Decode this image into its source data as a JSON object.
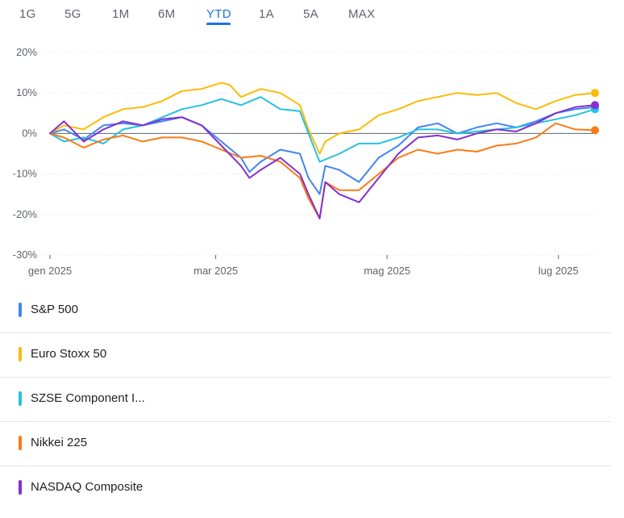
{
  "tabs": [
    {
      "label": "1G"
    },
    {
      "label": "5G"
    },
    {
      "label": "1M"
    },
    {
      "label": "6M"
    },
    {
      "label": "YTD",
      "active": true
    },
    {
      "label": "1A"
    },
    {
      "label": "5A"
    },
    {
      "label": "MAX"
    }
  ],
  "colors": {
    "accent": "#1a73e8",
    "zero_line": "#5f6368",
    "grid": "#e0e0e0"
  },
  "legend": [
    {
      "label": "S&P 500",
      "color": "#4285f4"
    },
    {
      "label": "Euro Stoxx 50",
      "color": "#fbbc04"
    },
    {
      "label": "SZSE Component I...",
      "color": "#24c1e0"
    },
    {
      "label": "Nikkei 225",
      "color": "#fa7b17"
    },
    {
      "label": "NASDAQ Composite",
      "color": "#8430ce"
    }
  ],
  "chart_data": {
    "type": "line",
    "ylim": [
      -30,
      20
    ],
    "yticks": [
      20,
      10,
      0,
      -10,
      -20,
      -30
    ],
    "ytick_labels": [
      "20%",
      "10%",
      "0%",
      "-10%",
      "-20%",
      "-30%"
    ],
    "xlim": [
      "2025-01-01",
      "2025-07-14"
    ],
    "xticks": [
      "2025-01-01",
      "2025-03-01",
      "2025-05-01",
      "2025-07-01"
    ],
    "xtick_labels": [
      "gen 2025",
      "mar 2025",
      "mag 2025",
      "lug 2025"
    ],
    "series": [
      {
        "name": "S&P 500",
        "color": "#4285f4",
        "points": [
          [
            "2025-01-01",
            0
          ],
          [
            "2025-01-06",
            1
          ],
          [
            "2025-01-13",
            -1.5
          ],
          [
            "2025-01-20",
            2
          ],
          [
            "2025-01-27",
            2.5
          ],
          [
            "2025-02-03",
            2
          ],
          [
            "2025-02-10",
            3
          ],
          [
            "2025-02-17",
            4
          ],
          [
            "2025-02-24",
            2
          ],
          [
            "2025-03-03",
            -2
          ],
          [
            "2025-03-10",
            -6
          ],
          [
            "2025-03-13",
            -9.5
          ],
          [
            "2025-03-17",
            -7
          ],
          [
            "2025-03-24",
            -4
          ],
          [
            "2025-03-31",
            -5
          ],
          [
            "2025-04-03",
            -11
          ],
          [
            "2025-04-07",
            -15
          ],
          [
            "2025-04-09",
            -8
          ],
          [
            "2025-04-14",
            -9
          ],
          [
            "2025-04-21",
            -12
          ],
          [
            "2025-04-28",
            -6
          ],
          [
            "2025-05-05",
            -3
          ],
          [
            "2025-05-12",
            1.5
          ],
          [
            "2025-05-19",
            2.5
          ],
          [
            "2025-05-26",
            0
          ],
          [
            "2025-06-02",
            1.5
          ],
          [
            "2025-06-09",
            2.5
          ],
          [
            "2025-06-16",
            1.5
          ],
          [
            "2025-06-23",
            3
          ],
          [
            "2025-06-30",
            5
          ],
          [
            "2025-07-07",
            6
          ],
          [
            "2025-07-14",
            6.5
          ]
        ]
      },
      {
        "name": "Euro Stoxx 50",
        "color": "#fbbc04",
        "points": [
          [
            "2025-01-01",
            0
          ],
          [
            "2025-01-06",
            2
          ],
          [
            "2025-01-13",
            1
          ],
          [
            "2025-01-20",
            4
          ],
          [
            "2025-01-27",
            6
          ],
          [
            "2025-02-03",
            6.5
          ],
          [
            "2025-02-10",
            8
          ],
          [
            "2025-02-17",
            10.5
          ],
          [
            "2025-02-24",
            11
          ],
          [
            "2025-03-03",
            12.5
          ],
          [
            "2025-03-06",
            12
          ],
          [
            "2025-03-10",
            9
          ],
          [
            "2025-03-17",
            11
          ],
          [
            "2025-03-24",
            10
          ],
          [
            "2025-03-31",
            7
          ],
          [
            "2025-04-03",
            1
          ],
          [
            "2025-04-07",
            -5
          ],
          [
            "2025-04-09",
            -2
          ],
          [
            "2025-04-14",
            0
          ],
          [
            "2025-04-21",
            1
          ],
          [
            "2025-04-28",
            4.5
          ],
          [
            "2025-05-05",
            6
          ],
          [
            "2025-05-12",
            8
          ],
          [
            "2025-05-19",
            9
          ],
          [
            "2025-05-26",
            10
          ],
          [
            "2025-06-02",
            9.5
          ],
          [
            "2025-06-09",
            10
          ],
          [
            "2025-06-16",
            7.5
          ],
          [
            "2025-06-23",
            6
          ],
          [
            "2025-06-30",
            8
          ],
          [
            "2025-07-07",
            9.5
          ],
          [
            "2025-07-14",
            10
          ]
        ]
      },
      {
        "name": "SZSE Component I...",
        "color": "#24c1e0",
        "points": [
          [
            "2025-01-01",
            0
          ],
          [
            "2025-01-06",
            -2
          ],
          [
            "2025-01-13",
            -1
          ],
          [
            "2025-01-20",
            -2.5
          ],
          [
            "2025-01-27",
            1
          ],
          [
            "2025-02-03",
            2
          ],
          [
            "2025-02-10",
            4
          ],
          [
            "2025-02-17",
            6
          ],
          [
            "2025-02-24",
            7
          ],
          [
            "2025-03-03",
            8.5
          ],
          [
            "2025-03-10",
            7
          ],
          [
            "2025-03-17",
            9
          ],
          [
            "2025-03-24",
            6
          ],
          [
            "2025-03-31",
            5.5
          ],
          [
            "2025-04-03",
            0
          ],
          [
            "2025-04-07",
            -7
          ],
          [
            "2025-04-14",
            -5
          ],
          [
            "2025-04-21",
            -2.5
          ],
          [
            "2025-04-28",
            -2.5
          ],
          [
            "2025-05-05",
            -1
          ],
          [
            "2025-05-12",
            1
          ],
          [
            "2025-05-19",
            1
          ],
          [
            "2025-05-26",
            0
          ],
          [
            "2025-06-02",
            0.5
          ],
          [
            "2025-06-09",
            1
          ],
          [
            "2025-06-16",
            1.5
          ],
          [
            "2025-06-23",
            2.5
          ],
          [
            "2025-06-30",
            3.5
          ],
          [
            "2025-07-07",
            4.5
          ],
          [
            "2025-07-14",
            6
          ]
        ]
      },
      {
        "name": "Nikkei 225",
        "color": "#fa7b17",
        "points": [
          [
            "2025-01-01",
            0
          ],
          [
            "2025-01-06",
            -1
          ],
          [
            "2025-01-13",
            -3.5
          ],
          [
            "2025-01-20",
            -1.5
          ],
          [
            "2025-01-27",
            -0.5
          ],
          [
            "2025-02-03",
            -2
          ],
          [
            "2025-02-10",
            -1
          ],
          [
            "2025-02-17",
            -1
          ],
          [
            "2025-02-24",
            -2
          ],
          [
            "2025-03-03",
            -4
          ],
          [
            "2025-03-10",
            -6
          ],
          [
            "2025-03-17",
            -5.5
          ],
          [
            "2025-03-24",
            -7
          ],
          [
            "2025-03-31",
            -11
          ],
          [
            "2025-04-03",
            -16
          ],
          [
            "2025-04-07",
            -21
          ],
          [
            "2025-04-09",
            -12
          ],
          [
            "2025-04-14",
            -14
          ],
          [
            "2025-04-21",
            -14
          ],
          [
            "2025-04-28",
            -10
          ],
          [
            "2025-05-05",
            -6
          ],
          [
            "2025-05-12",
            -4
          ],
          [
            "2025-05-19",
            -5
          ],
          [
            "2025-05-26",
            -4
          ],
          [
            "2025-06-02",
            -4.5
          ],
          [
            "2025-06-09",
            -3
          ],
          [
            "2025-06-16",
            -2.5
          ],
          [
            "2025-06-23",
            -1
          ],
          [
            "2025-06-30",
            2.5
          ],
          [
            "2025-07-07",
            1
          ],
          [
            "2025-07-14",
            0.8
          ]
        ]
      },
      {
        "name": "NASDAQ Composite",
        "color": "#8430ce",
        "points": [
          [
            "2025-01-01",
            0
          ],
          [
            "2025-01-06",
            3
          ],
          [
            "2025-01-13",
            -2
          ],
          [
            "2025-01-20",
            1
          ],
          [
            "2025-01-27",
            3
          ],
          [
            "2025-02-03",
            2
          ],
          [
            "2025-02-10",
            3.5
          ],
          [
            "2025-02-17",
            4
          ],
          [
            "2025-02-24",
            2
          ],
          [
            "2025-03-03",
            -3
          ],
          [
            "2025-03-10",
            -8
          ],
          [
            "2025-03-13",
            -11
          ],
          [
            "2025-03-17",
            -9
          ],
          [
            "2025-03-24",
            -6
          ],
          [
            "2025-03-31",
            -10
          ],
          [
            "2025-04-03",
            -15
          ],
          [
            "2025-04-07",
            -21
          ],
          [
            "2025-04-09",
            -12
          ],
          [
            "2025-04-14",
            -15
          ],
          [
            "2025-04-21",
            -17
          ],
          [
            "2025-04-28",
            -11
          ],
          [
            "2025-05-05",
            -5
          ],
          [
            "2025-05-12",
            -1
          ],
          [
            "2025-05-19",
            -0.5
          ],
          [
            "2025-05-26",
            -1.5
          ],
          [
            "2025-06-02",
            0
          ],
          [
            "2025-06-09",
            1
          ],
          [
            "2025-06-16",
            0.5
          ],
          [
            "2025-06-23",
            2.5
          ],
          [
            "2025-06-30",
            5
          ],
          [
            "2025-07-07",
            6.5
          ],
          [
            "2025-07-14",
            7
          ]
        ]
      }
    ]
  }
}
